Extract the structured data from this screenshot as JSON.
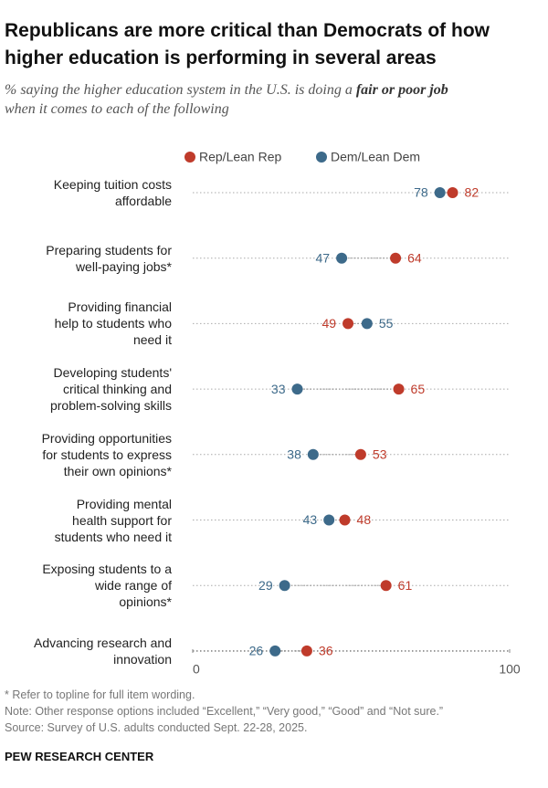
{
  "chart_data": {
    "type": "dot",
    "title": "Republicans are more critical than Democrats of how\nhigher education is performing in several areas",
    "subtitle_parts": [
      "% saying the higher education system in the U.S. is doing a ",
      "fair or poor job",
      "\nwhen it comes to each of the following"
    ],
    "categories": [
      "Keeping tuition costs\naffordable",
      "Preparing students for\nwell-paying jobs*",
      "Providing financial\nhelp to students who\nneed it",
      "Developing students'\ncritical thinking and\nproblem-solving skills",
      "Providing opportunities\nfor students to express\ntheir own opinions*",
      "Providing mental\nhealth support for\nstudents who need it",
      "Exposing students to a\nwide range of\nopinions*",
      "Advancing research and\ninnovation"
    ],
    "series": [
      {
        "name": "Rep/Lean Rep",
        "color": "#bf3b2b",
        "values": [
          82,
          64,
          49,
          65,
          53,
          48,
          61,
          36
        ]
      },
      {
        "name": "Dem/Lean Dem",
        "color": "#3d6a8a",
        "values": [
          78,
          47,
          55,
          33,
          38,
          43,
          29,
          26
        ]
      }
    ],
    "xlim": [
      0,
      100
    ],
    "xticks": [
      0,
      100
    ],
    "notes": [
      "* Refer to topline for full item wording.",
      "Note: Other response options included “Excellent,” “Very good,” “Good” and “Not sure.”",
      "Source: Survey of U.S. adults conducted Sept. 22-28, 2025."
    ],
    "source_org": "PEW RESEARCH CENTER"
  }
}
